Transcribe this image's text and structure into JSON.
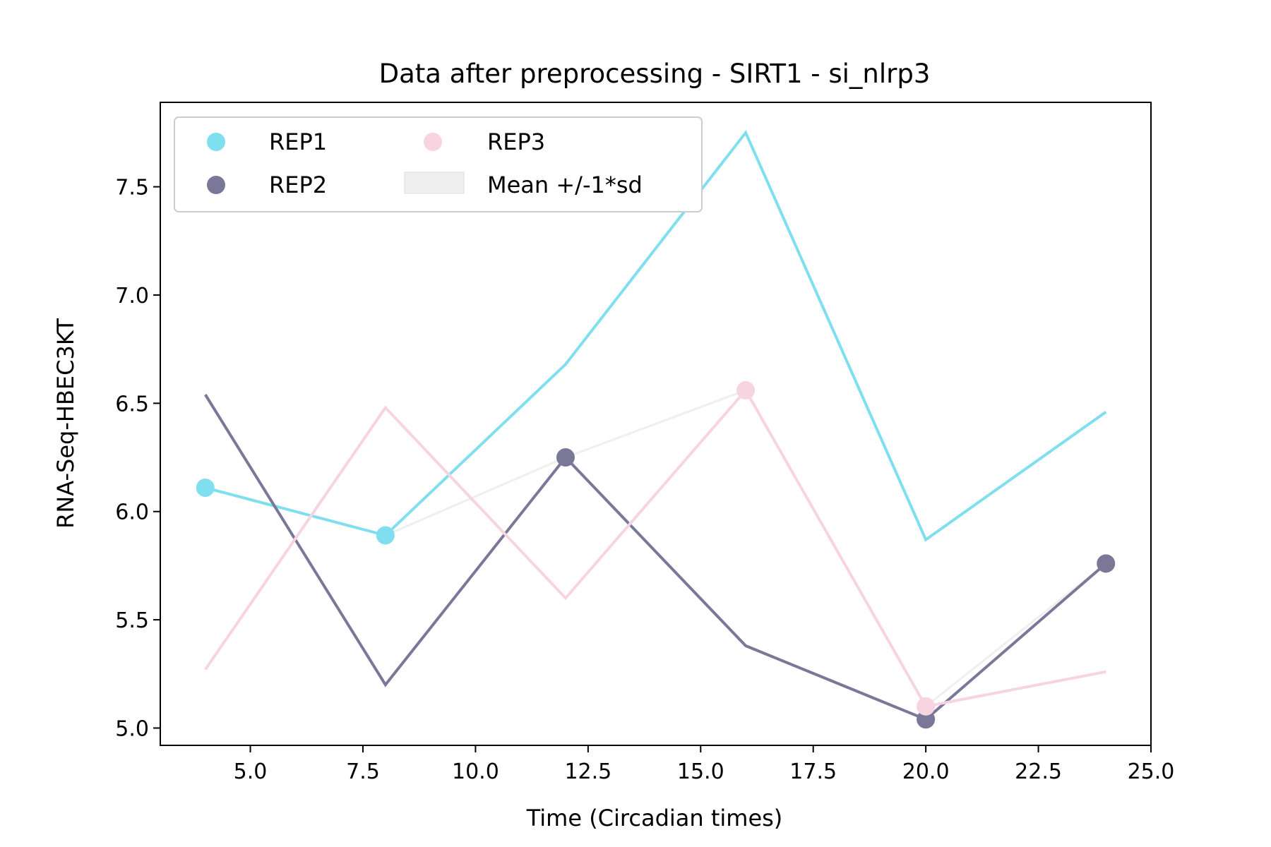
{
  "chart_data": {
    "type": "line",
    "title": "Data after preprocessing - SIRT1 - si_nlrp3",
    "xlabel": "Time (Circadian times)",
    "ylabel": "RNA-Seq-HBEC3KT",
    "xlim": [
      3.0,
      25.0
    ],
    "ylim": [
      4.92,
      7.89
    ],
    "x_ticks": [
      5.0,
      7.5,
      10.0,
      12.5,
      15.0,
      17.5,
      20.0,
      22.5,
      25.0
    ],
    "x_tick_labels": [
      "5.0",
      "7.5",
      "10.0",
      "12.5",
      "15.0",
      "17.5",
      "20.0",
      "22.5",
      "25.0"
    ],
    "y_ticks": [
      5.0,
      5.5,
      6.0,
      6.5,
      7.0,
      7.5
    ],
    "y_tick_labels": [
      "5.0",
      "5.5",
      "6.0",
      "6.5",
      "7.0",
      "7.5"
    ],
    "grid": false,
    "legend_position": "top-left",
    "legend_columns": 2,
    "x": [
      4,
      8,
      12,
      16,
      20,
      24
    ],
    "series": [
      {
        "name": "REP1",
        "color": "#7fdfef",
        "line_values": [
          6.11,
          5.89,
          6.68,
          7.75,
          5.87,
          6.46
        ],
        "points": [
          {
            "x": 4,
            "y": 6.11
          },
          {
            "x": 8,
            "y": 5.89
          }
        ]
      },
      {
        "name": "REP2",
        "color": "#7a7798",
        "line_values": [
          6.54,
          5.2,
          6.25,
          5.38,
          5.04,
          5.76
        ],
        "points": [
          {
            "x": 12,
            "y": 6.25
          },
          {
            "x": 20,
            "y": 5.04
          },
          {
            "x": 24,
            "y": 5.76
          }
        ]
      },
      {
        "name": "REP3",
        "color": "#f7d4df",
        "line_values": [
          5.27,
          6.48,
          5.6,
          6.56,
          5.1,
          5.26
        ],
        "points": [
          {
            "x": 16,
            "y": 6.56
          },
          {
            "x": 20,
            "y": 5.1
          }
        ]
      }
    ],
    "mean_band": {
      "name": "Mean +/-1*sd",
      "color": "#efefef",
      "points": [
        {
          "x": 4,
          "y": 6.11
        },
        {
          "x": 8,
          "y": 5.89
        },
        {
          "x": 12,
          "y": 6.25
        },
        {
          "x": 16,
          "y": 6.56
        },
        {
          "x": 20,
          "y": 5.1
        },
        {
          "x": 24,
          "y": 5.76
        }
      ]
    }
  }
}
